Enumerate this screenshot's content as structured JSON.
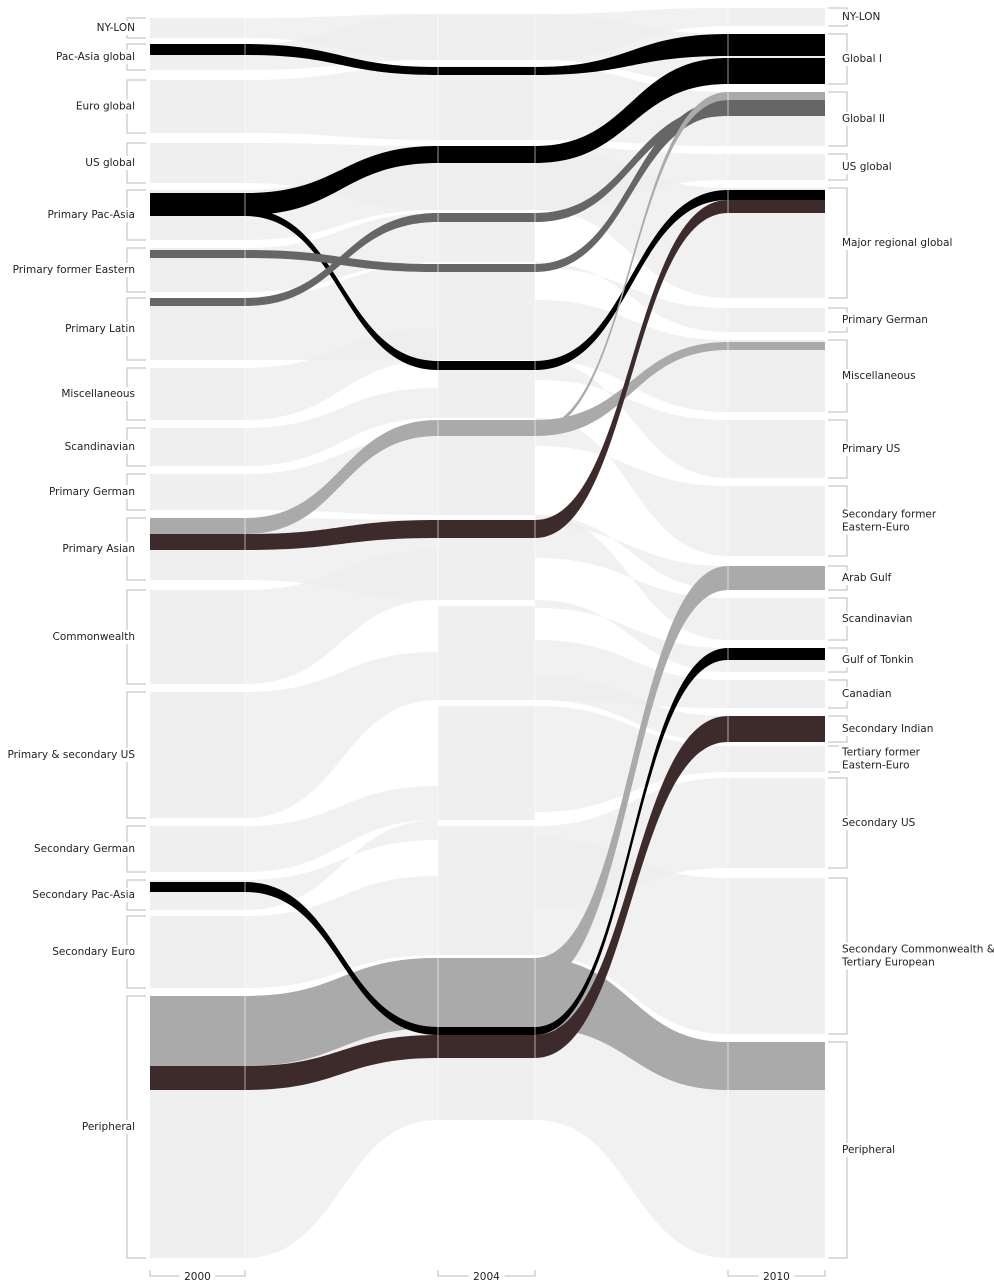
{
  "years": [
    "2000",
    "2004",
    "2010"
  ],
  "left_nodes": [
    [
      "NY-LON"
    ],
    [
      "Pac-Asia global"
    ],
    [
      "Euro global"
    ],
    [
      "US global"
    ],
    [
      "Primary Pac-Asia"
    ],
    [
      "Primary former Eastern"
    ],
    [
      "Primary Latin"
    ],
    [
      "Miscellaneous"
    ],
    [
      "Scandinavian"
    ],
    [
      "Primary German"
    ],
    [
      "Primary Asian"
    ],
    [
      "Commonwealth"
    ],
    [
      "Primary & secondary US"
    ],
    [
      "Secondary German"
    ],
    [
      "Secondary Pac-Asia"
    ],
    [
      "Secondary Euro"
    ],
    [
      "Peripheral"
    ]
  ],
  "right_nodes": [
    [
      "NY-LON"
    ],
    [
      "Global I"
    ],
    [
      "Global II"
    ],
    [
      "US global"
    ],
    [
      "Major regional global"
    ],
    [
      "Primary German"
    ],
    [
      "Miscellaneous"
    ],
    [
      "Primary US"
    ],
    [
      "Secondary former",
      "Eastern-Euro"
    ],
    [
      "Arab Gulf"
    ],
    [
      "Scandinavian"
    ],
    [
      "Gulf of Tonkin"
    ],
    [
      "Canadian"
    ],
    [
      "Secondary Indian"
    ],
    [
      "Tertiary former",
      "Eastern-Euro"
    ],
    [
      "Secondary US"
    ],
    [
      "Secondary Commonwealth &",
      "Tertiary European"
    ],
    [
      "Peripheral"
    ]
  ]
}
